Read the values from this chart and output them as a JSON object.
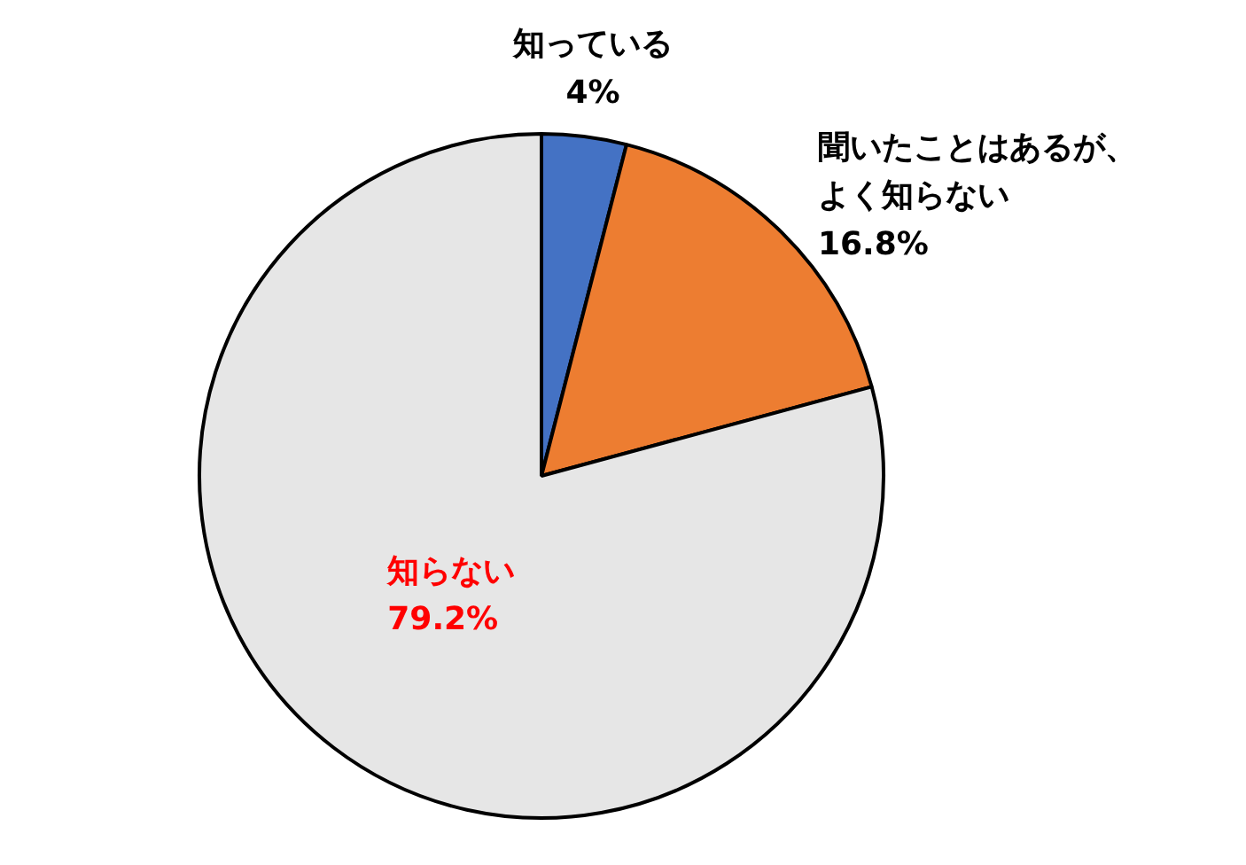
{
  "chart_data": {
    "type": "pie",
    "categories": [
      "知っている",
      "聞いたことはあるが、よく知らない",
      "知らない"
    ],
    "values": [
      4,
      16.8,
      79.2
    ],
    "colors": [
      "#4472c4",
      "#ed7d31",
      "#e6e6e6"
    ],
    "value_labels": [
      "4%",
      "16.8%",
      "79.2%"
    ]
  }
}
